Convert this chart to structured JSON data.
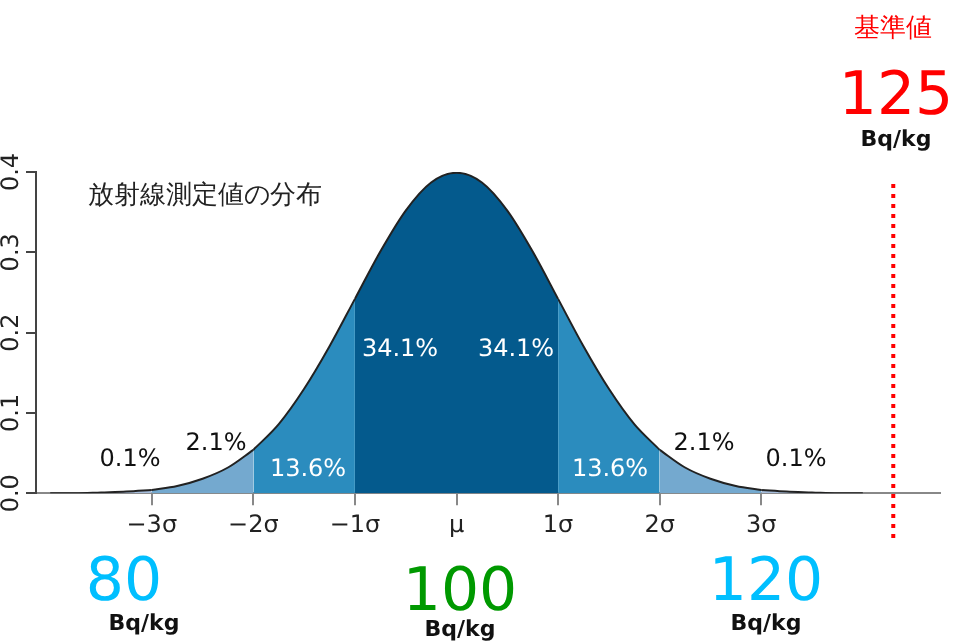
{
  "chart_data": {
    "type": "area",
    "title": "放射線測定値の分布",
    "xlim": [
      -4.14,
      4.76
    ],
    "ylim": [
      0,
      0.4
    ],
    "xticks": [
      {
        "value": -3,
        "label": "−3σ"
      },
      {
        "value": -2,
        "label": "−2σ"
      },
      {
        "value": -1,
        "label": "−1σ"
      },
      {
        "value": 0,
        "label": "μ"
      },
      {
        "value": 1,
        "label": "1σ"
      },
      {
        "value": 2,
        "label": "2σ"
      },
      {
        "value": 3,
        "label": "3σ"
      }
    ],
    "yticks": [
      {
        "value": 0,
        "label": "0.0"
      },
      {
        "value": 0.1,
        "label": "0.1"
      },
      {
        "value": 0.2,
        "label": "0.2"
      },
      {
        "value": 0.3,
        "label": "0.3"
      },
      {
        "value": 0.4,
        "label": "0.4"
      }
    ],
    "series": [
      {
        "color": "#a6bddb",
        "x": [
          -4,
          -3.75,
          -3.5,
          -3.25,
          -3
        ],
        "values": [
          0,
          0,
          0.001,
          0.002,
          0.004
        ]
      },
      {
        "color": "#74a9cf",
        "x": [
          -3,
          -2.75,
          -2.5,
          -2.25,
          -2
        ],
        "values": [
          0.004,
          0.009,
          0.018,
          0.032,
          0.054
        ]
      },
      {
        "color": "#2b8cbe",
        "x": [
          -2,
          -1.75,
          -1.5,
          -1.25,
          -1
        ],
        "values": [
          0.054,
          0.086,
          0.13,
          0.183,
          0.242
        ]
      },
      {
        "color": "#045a8d",
        "x": [
          -1,
          -0.75,
          -0.5,
          -0.25,
          0,
          0.25,
          0.5,
          0.75,
          1
        ],
        "values": [
          0.242,
          0.301,
          0.352,
          0.387,
          0.399,
          0.387,
          0.352,
          0.301,
          0.242
        ]
      },
      {
        "color": "#2b8cbe",
        "x": [
          1,
          1.25,
          1.5,
          1.75,
          2
        ],
        "values": [
          0.242,
          0.183,
          0.13,
          0.086,
          0.054
        ]
      },
      {
        "color": "#74a9cf",
        "x": [
          2,
          2.25,
          2.5,
          2.75,
          3
        ],
        "values": [
          0.054,
          0.032,
          0.018,
          0.009,
          0.004
        ]
      },
      {
        "color": "#a6bddb",
        "x": [
          3,
          3.25,
          3.5,
          3.75,
          4
        ],
        "values": [
          0.004,
          0.002,
          0.001,
          0,
          0
        ]
      }
    ],
    "ref_lines": [
      {
        "axis": "x",
        "value": 4.3,
        "label": "基準値",
        "color": "#ff0000",
        "line_style": "dotted"
      }
    ],
    "annotations": [
      "34.1%",
      "34.1%",
      "13.6%",
      "13.6%",
      "2.1%",
      "2.1%",
      "0.1%",
      "0.1%",
      "80",
      "Bq/kg",
      "100",
      "Bq/kg",
      "120",
      "Bq/kg",
      "125",
      "Bq/kg"
    ],
    "legend": false,
    "grid": false
  }
}
